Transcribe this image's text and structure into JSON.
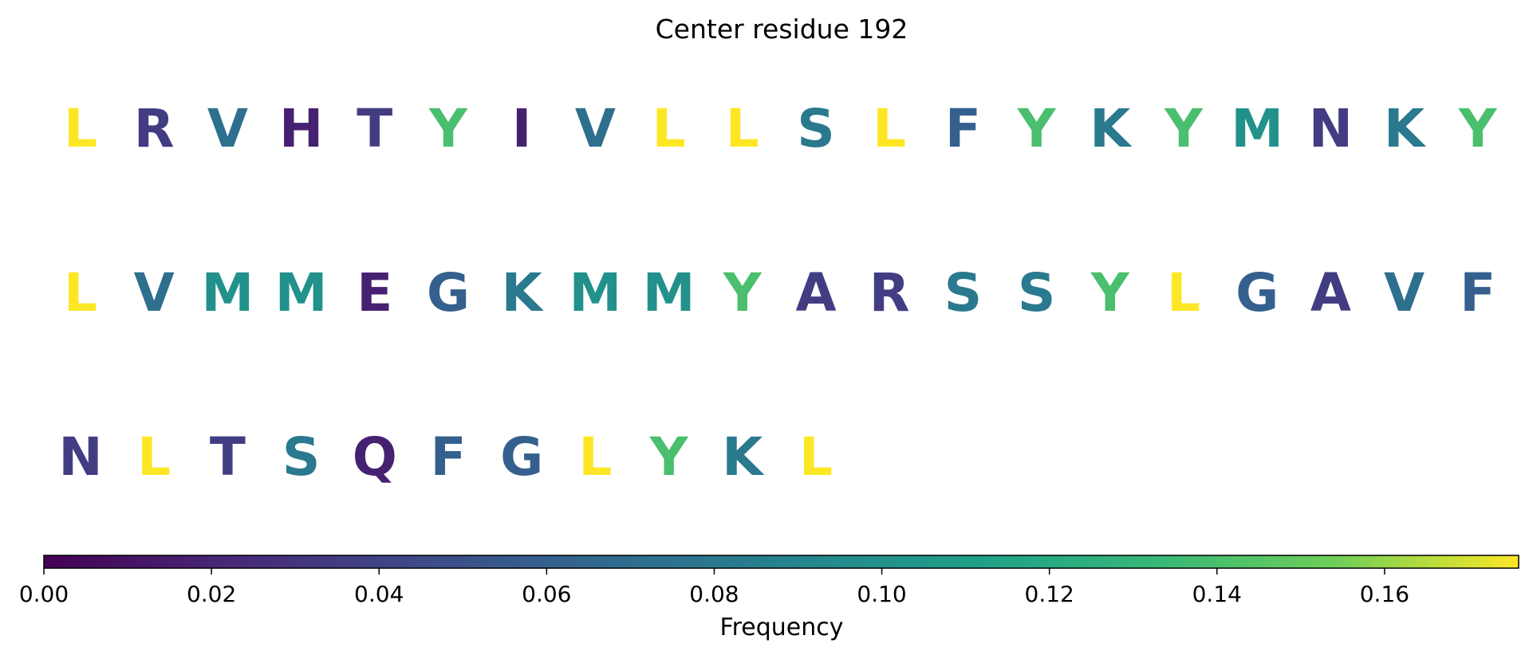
{
  "chart_data": {
    "type": "heatmap",
    "title": "Center residue 192",
    "colormap": "viridis",
    "colorbar": {
      "label": "Frequency",
      "range": [
        0,
        0.176
      ],
      "ticks": [
        "0.00",
        "0.02",
        "0.04",
        "0.06",
        "0.08",
        "0.10",
        "0.12",
        "0.14",
        "0.16"
      ]
    },
    "rows": [
      {
        "residues": [
          "L",
          "R",
          "V",
          "H",
          "T",
          "Y",
          "I",
          "V",
          "L",
          "L",
          "S",
          "L",
          "F",
          "Y",
          "K",
          "Y",
          "M",
          "N",
          "K",
          "Y"
        ],
        "values": [
          0.176,
          0.036,
          0.072,
          0.018,
          0.036,
          0.14,
          0.018,
          0.072,
          0.176,
          0.176,
          0.08,
          0.176,
          0.06,
          0.14,
          0.08,
          0.14,
          0.1,
          0.036,
          0.08,
          0.14
        ]
      },
      {
        "residues": [
          "L",
          "V",
          "M",
          "M",
          "E",
          "G",
          "K",
          "M",
          "M",
          "Y",
          "A",
          "R",
          "S",
          "S",
          "Y",
          "L",
          "G",
          "A",
          "V",
          "F"
        ],
        "values": [
          0.176,
          0.072,
          0.1,
          0.1,
          0.018,
          0.06,
          0.08,
          0.1,
          0.1,
          0.14,
          0.036,
          0.036,
          0.08,
          0.08,
          0.14,
          0.176,
          0.06,
          0.036,
          0.072,
          0.06
        ]
      },
      {
        "residues": [
          "N",
          "L",
          "T",
          "S",
          "Q",
          "F",
          "G",
          "L",
          "Y",
          "K",
          "L"
        ],
        "values": [
          0.036,
          0.176,
          0.036,
          0.08,
          0.018,
          0.06,
          0.06,
          0.176,
          0.14,
          0.08,
          0.176
        ]
      }
    ]
  }
}
